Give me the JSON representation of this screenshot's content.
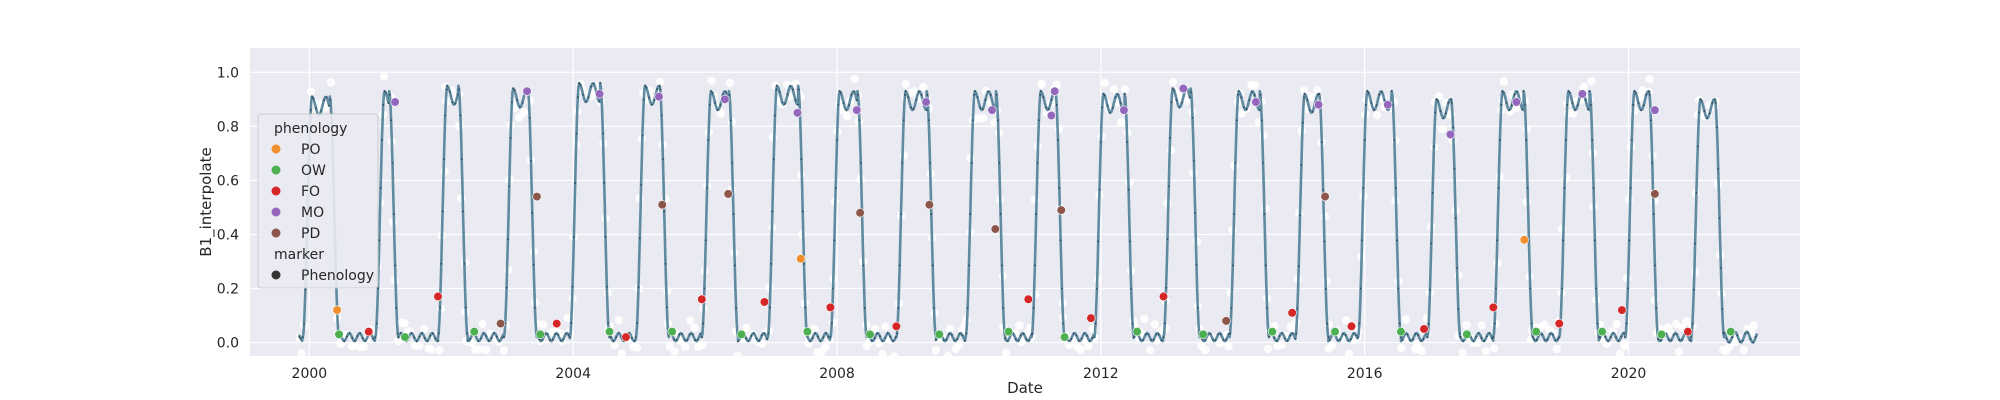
{
  "chart_data": {
    "type": "line",
    "xlabel": "Date",
    "ylabel": "B1_interpolate",
    "xlim": [
      1999.1,
      2022.6
    ],
    "ylim": [
      -0.05,
      1.09
    ],
    "x_ticks": [
      2000,
      2004,
      2008,
      2012,
      2016,
      2020
    ],
    "x_tick_labels": [
      "2000",
      "2004",
      "2008",
      "2012",
      "2016",
      "2020"
    ],
    "y_ticks": [
      0.0,
      0.2,
      0.4,
      0.6,
      0.8,
      1.0
    ],
    "y_tick_labels": [
      "0.0",
      "0.2",
      "0.4",
      "0.6",
      "0.8",
      "1.0"
    ],
    "grid": true,
    "legend_position": "left",
    "legend": {
      "hue_title": "phenology",
      "marker_title": "marker",
      "marker_label": "Phenology",
      "entries": [
        {
          "label": "PO",
          "color": "#f28e2b"
        },
        {
          "label": "OW",
          "color": "#4caf50"
        },
        {
          "label": "FO",
          "color": "#d62728"
        },
        {
          "label": "MO",
          "color": "#9467bd"
        },
        {
          "label": "PD",
          "color": "#8c564b"
        }
      ]
    },
    "colors": {
      "line": "#5f8aa0",
      "raw_points": "#ffffff",
      "background": "#eaeaf2"
    },
    "series": [
      {
        "name": "B1_interpolate",
        "seasons": [
          {
            "rise": 1999.9,
            "peak": 0.91,
            "fall": 2000.45
          },
          {
            "rise": 2001.0,
            "peak": 0.93,
            "fall": 2001.35
          },
          {
            "rise": 2001.95,
            "peak": 0.95,
            "fall": 2002.4
          },
          {
            "rise": 2002.95,
            "peak": 0.94,
            "fall": 2003.45
          },
          {
            "rise": 2003.95,
            "peak": 0.96,
            "fall": 2004.55
          },
          {
            "rise": 2004.95,
            "peak": 0.95,
            "fall": 2005.45
          },
          {
            "rise": 2005.95,
            "peak": 0.93,
            "fall": 2006.5
          },
          {
            "rise": 2006.95,
            "peak": 0.95,
            "fall": 2007.55
          },
          {
            "rise": 2007.9,
            "peak": 0.93,
            "fall": 2008.45
          },
          {
            "rise": 2008.9,
            "peak": 0.93,
            "fall": 2009.5
          },
          {
            "rise": 2009.95,
            "peak": 0.93,
            "fall": 2010.55
          },
          {
            "rise": 2010.95,
            "peak": 0.93,
            "fall": 2011.45
          },
          {
            "rise": 2011.9,
            "peak": 0.92,
            "fall": 2012.5
          },
          {
            "rise": 2012.95,
            "peak": 0.94,
            "fall": 2013.5
          },
          {
            "rise": 2013.95,
            "peak": 0.93,
            "fall": 2014.55
          },
          {
            "rise": 2014.95,
            "peak": 0.92,
            "fall": 2015.45
          },
          {
            "rise": 2015.9,
            "peak": 0.93,
            "fall": 2016.55
          },
          {
            "rise": 2016.95,
            "peak": 0.9,
            "fall": 2017.45
          },
          {
            "rise": 2017.95,
            "peak": 0.93,
            "fall": 2018.55
          },
          {
            "rise": 2018.95,
            "peak": 0.93,
            "fall": 2019.55
          },
          {
            "rise": 2019.95,
            "peak": 0.93,
            "fall": 2020.45
          },
          {
            "rise": 2020.95,
            "peak": 0.9,
            "fall": 2021.45
          }
        ],
        "baseline": 0.02,
        "end_x": 2021.95
      }
    ],
    "phenology_points": [
      {
        "label": "PO",
        "points": [
          [
            2000.42,
            0.12
          ],
          [
            2007.45,
            0.31
          ],
          [
            2018.42,
            0.38
          ]
        ]
      },
      {
        "label": "OW",
        "points": [
          [
            2000.45,
            0.03
          ],
          [
            2001.45,
            0.02
          ],
          [
            2002.5,
            0.04
          ],
          [
            2003.5,
            0.03
          ],
          [
            2004.55,
            0.04
          ],
          [
            2005.5,
            0.04
          ],
          [
            2006.55,
            0.03
          ],
          [
            2007.55,
            0.04
          ],
          [
            2008.5,
            0.03
          ],
          [
            2009.55,
            0.03
          ],
          [
            2010.6,
            0.04
          ],
          [
            2011.45,
            0.02
          ],
          [
            2012.55,
            0.04
          ],
          [
            2013.55,
            0.03
          ],
          [
            2014.6,
            0.04
          ],
          [
            2015.55,
            0.04
          ],
          [
            2016.55,
            0.04
          ],
          [
            2017.55,
            0.03
          ],
          [
            2018.6,
            0.04
          ],
          [
            2019.6,
            0.04
          ],
          [
            2020.5,
            0.03
          ],
          [
            2021.55,
            0.04
          ]
        ]
      },
      {
        "label": "FO",
        "points": [
          [
            2000.9,
            0.04
          ],
          [
            2001.95,
            0.17
          ],
          [
            2003.75,
            0.07
          ],
          [
            2004.8,
            0.02
          ],
          [
            2005.95,
            0.16
          ],
          [
            2006.9,
            0.15
          ],
          [
            2007.9,
            0.13
          ],
          [
            2008.9,
            0.06
          ],
          [
            2010.9,
            0.16
          ],
          [
            2011.85,
            0.09
          ],
          [
            2012.95,
            0.17
          ],
          [
            2014.9,
            0.11
          ],
          [
            2015.8,
            0.06
          ],
          [
            2016.9,
            0.05
          ],
          [
            2017.95,
            0.13
          ],
          [
            2018.95,
            0.07
          ],
          [
            2019.9,
            0.12
          ],
          [
            2020.9,
            0.04
          ]
        ]
      },
      {
        "label": "MO",
        "points": [
          [
            2001.3,
            0.89
          ],
          [
            2003.3,
            0.93
          ],
          [
            2004.4,
            0.92
          ],
          [
            2005.3,
            0.91
          ],
          [
            2006.3,
            0.9
          ],
          [
            2007.4,
            0.85
          ],
          [
            2008.3,
            0.86
          ],
          [
            2009.35,
            0.89
          ],
          [
            2010.35,
            0.86
          ],
          [
            2011.25,
            0.84
          ],
          [
            2011.3,
            0.93
          ],
          [
            2012.35,
            0.86
          ],
          [
            2013.25,
            0.94
          ],
          [
            2014.35,
            0.89
          ],
          [
            2015.3,
            0.88
          ],
          [
            2016.35,
            0.88
          ],
          [
            2017.3,
            0.77
          ],
          [
            2018.3,
            0.89
          ],
          [
            2019.3,
            0.92
          ],
          [
            2020.4,
            0.86
          ]
        ]
      },
      {
        "label": "PD",
        "points": [
          [
            2002.9,
            0.07
          ],
          [
            2003.45,
            0.54
          ],
          [
            2005.35,
            0.51
          ],
          [
            2006.35,
            0.55
          ],
          [
            2008.35,
            0.48
          ],
          [
            2009.4,
            0.51
          ],
          [
            2010.4,
            0.42
          ],
          [
            2011.4,
            0.49
          ],
          [
            2013.9,
            0.08
          ],
          [
            2015.4,
            0.54
          ],
          [
            2020.4,
            0.55
          ]
        ]
      }
    ]
  }
}
